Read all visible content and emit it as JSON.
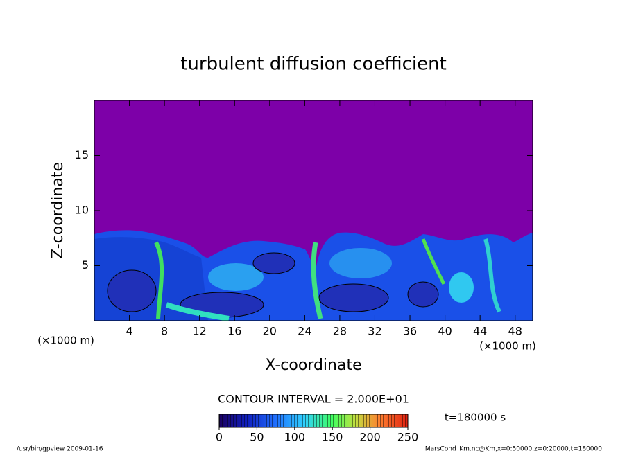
{
  "chart_data": {
    "type": "contour",
    "title": "turbulent diffusion coefficient",
    "x_label": "X-coordinate",
    "y_label": "Z-coordinate",
    "x_unit": "(×1000 m)",
    "xlim": [
      0,
      50
    ],
    "xticks": [
      4,
      8,
      12,
      16,
      20,
      24,
      28,
      32,
      36,
      40,
      44,
      48
    ],
    "ylim": [
      0,
      20
    ],
    "yticks": [
      5,
      10,
      15
    ],
    "contour_interval": "CONTOUR INTERVAL = 2.000E+01",
    "colorbar": {
      "lim": [
        0,
        250
      ],
      "ticks": [
        0,
        50,
        100,
        150,
        200,
        250
      ]
    },
    "time_label": "t=180000 s"
  },
  "footer": {
    "left": "/usr/bin/gpview  2009-01-16",
    "right": "MarsCond_Km.nc@Km,x=0:50000,z=0:20000,t=180000"
  }
}
